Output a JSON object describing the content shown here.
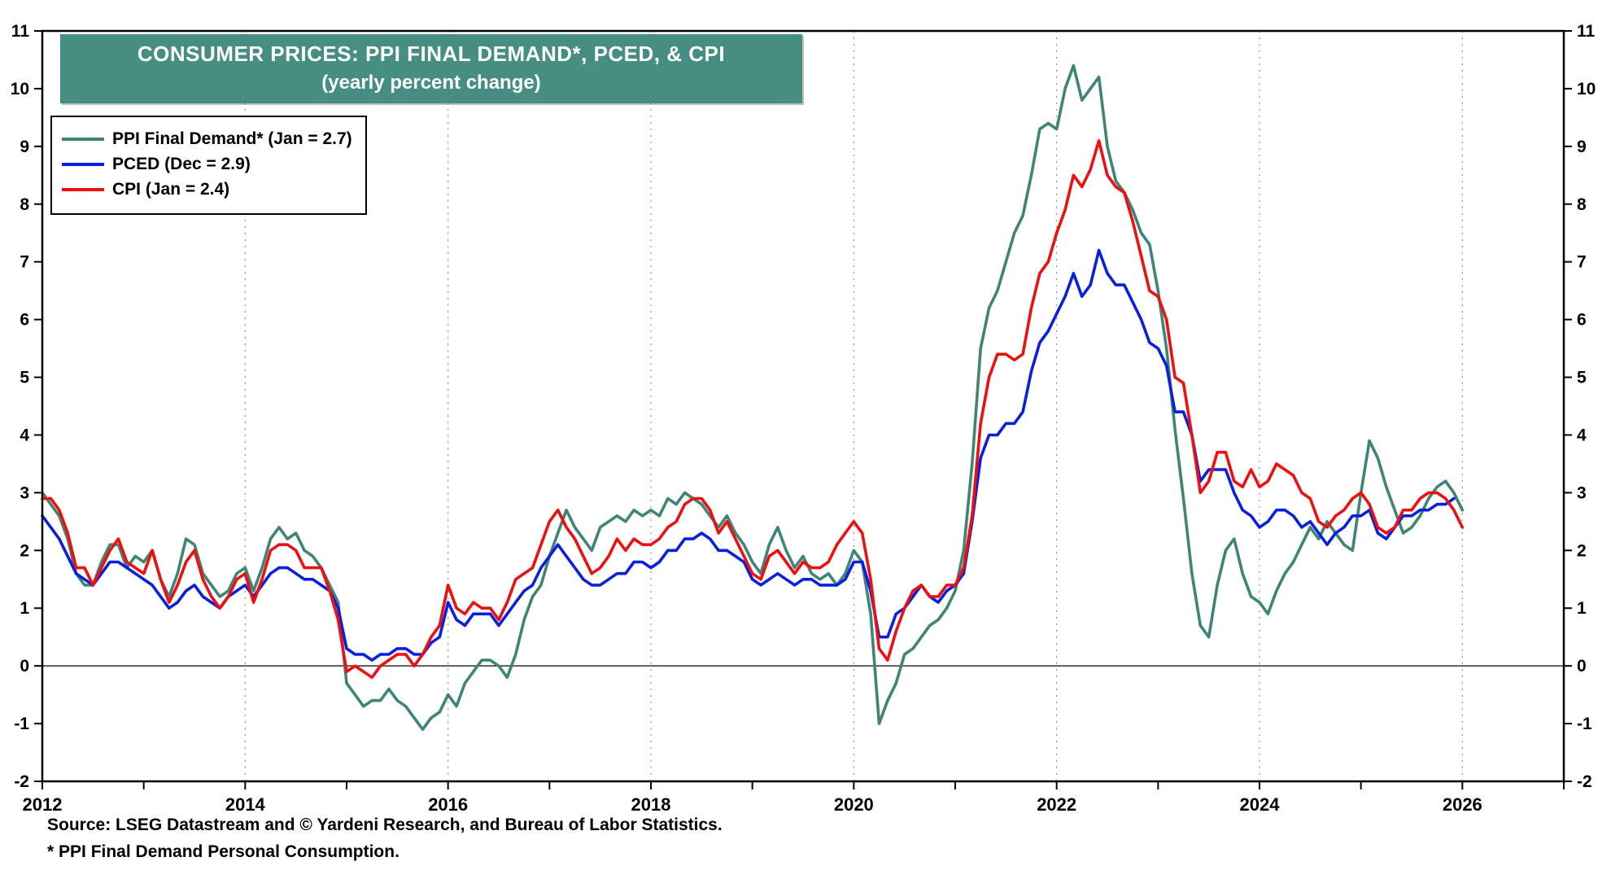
{
  "header": {
    "title_line1": "CONSUMER PRICES: PPI FINAL DEMAND*, PCED, & CPI",
    "title_line2": "(yearly percent change)",
    "title_bg_color": "#478E82"
  },
  "legend": {
    "items": [
      {
        "label": "PPI Final Demand* (Jan = 2.7)",
        "color": "#3F8577"
      },
      {
        "label": "PCED (Dec = 2.9)",
        "color": "#0B1FDE"
      },
      {
        "label": "CPI (Jan = 2.4)",
        "color": "#EC1010"
      }
    ]
  },
  "footer": {
    "source": "Source: LSEG Datastream and © Yardeni Research, and Bureau of Labor Statistics.",
    "footnote": "* PPI Final Demand Personal Consumption."
  },
  "chart_data": {
    "type": "line",
    "title": "Consumer Prices: PPI Final Demand, PCED, & CPI (yearly percent change)",
    "xlabel": "",
    "ylabel": "yearly percent change",
    "xlim": [
      2012,
      2027
    ],
    "ylim": [
      -2,
      11
    ],
    "x_ticks": [
      2012,
      2014,
      2016,
      2018,
      2020,
      2022,
      2024,
      2026
    ],
    "y_ticks": [
      -2,
      -1,
      0,
      1,
      2,
      3,
      4,
      5,
      6,
      7,
      8,
      9,
      10,
      11
    ],
    "grid": "vertical-dotted",
    "legend_position": "top-left",
    "x_start": 2012.0,
    "x_step_years": 0.0833333,
    "series": [
      {
        "name": "PPI Final Demand*",
        "color": "#3F8577",
        "latest_label": "Jan = 2.7",
        "values": [
          3.0,
          2.8,
          2.6,
          2.2,
          1.6,
          1.4,
          1.4,
          1.8,
          2.1,
          2.1,
          1.7,
          1.9,
          1.8,
          2.0,
          1.5,
          1.2,
          1.6,
          2.2,
          2.1,
          1.6,
          1.4,
          1.2,
          1.3,
          1.6,
          1.7,
          1.3,
          1.7,
          2.2,
          2.4,
          2.2,
          2.3,
          2.0,
          1.9,
          1.7,
          1.4,
          1.1,
          -0.3,
          -0.5,
          -0.7,
          -0.6,
          -0.6,
          -0.4,
          -0.6,
          -0.7,
          -0.9,
          -1.1,
          -0.9,
          -0.8,
          -0.5,
          -0.7,
          -0.3,
          -0.1,
          0.1,
          0.1,
          0.0,
          -0.2,
          0.2,
          0.8,
          1.2,
          1.4,
          1.9,
          2.3,
          2.7,
          2.4,
          2.2,
          2.0,
          2.4,
          2.5,
          2.6,
          2.5,
          2.7,
          2.6,
          2.7,
          2.6,
          2.9,
          2.8,
          3.0,
          2.9,
          2.8,
          2.6,
          2.4,
          2.6,
          2.3,
          2.1,
          1.8,
          1.6,
          2.1,
          2.4,
          2.0,
          1.7,
          1.9,
          1.6,
          1.5,
          1.6,
          1.4,
          1.6,
          2.0,
          1.8,
          0.9,
          -1.0,
          -0.6,
          -0.3,
          0.2,
          0.3,
          0.5,
          0.7,
          0.8,
          1.0,
          1.3,
          2.0,
          3.5,
          5.5,
          6.2,
          6.5,
          7.0,
          7.5,
          7.8,
          8.5,
          9.3,
          9.4,
          9.3,
          10.0,
          10.4,
          9.8,
          10.0,
          10.2,
          9.0,
          8.4,
          8.2,
          7.9,
          7.5,
          7.3,
          6.5,
          5.5,
          4.1,
          2.9,
          1.6,
          0.7,
          0.5,
          1.4,
          2.0,
          2.2,
          1.6,
          1.2,
          1.1,
          0.9,
          1.3,
          1.6,
          1.8,
          2.1,
          2.4,
          2.2,
          2.5,
          2.3,
          2.1,
          2.0,
          3.0,
          3.9,
          3.6,
          3.1,
          2.7,
          2.3,
          2.4,
          2.6,
          2.9,
          3.1,
          3.2,
          3.0,
          2.7
        ]
      },
      {
        "name": "PCED",
        "color": "#0B1FDE",
        "latest_label": "Dec = 2.9",
        "values": [
          2.6,
          2.4,
          2.2,
          1.9,
          1.6,
          1.5,
          1.4,
          1.6,
          1.8,
          1.8,
          1.7,
          1.6,
          1.5,
          1.4,
          1.2,
          1.0,
          1.1,
          1.3,
          1.4,
          1.2,
          1.1,
          1.0,
          1.2,
          1.3,
          1.4,
          1.2,
          1.4,
          1.6,
          1.7,
          1.7,
          1.6,
          1.5,
          1.5,
          1.4,
          1.3,
          1.0,
          0.3,
          0.2,
          0.2,
          0.1,
          0.2,
          0.2,
          0.3,
          0.3,
          0.2,
          0.2,
          0.4,
          0.5,
          1.1,
          0.8,
          0.7,
          0.9,
          0.9,
          0.9,
          0.7,
          0.9,
          1.1,
          1.3,
          1.4,
          1.7,
          1.9,
          2.1,
          1.9,
          1.7,
          1.5,
          1.4,
          1.4,
          1.5,
          1.6,
          1.6,
          1.8,
          1.8,
          1.7,
          1.8,
          2.0,
          2.0,
          2.2,
          2.2,
          2.3,
          2.2,
          2.0,
          2.0,
          1.9,
          1.8,
          1.5,
          1.4,
          1.5,
          1.6,
          1.5,
          1.4,
          1.5,
          1.5,
          1.4,
          1.4,
          1.4,
          1.5,
          1.8,
          1.8,
          1.3,
          0.5,
          0.5,
          0.9,
          1.0,
          1.2,
          1.4,
          1.2,
          1.1,
          1.3,
          1.4,
          1.6,
          2.5,
          3.6,
          4.0,
          4.0,
          4.2,
          4.2,
          4.4,
          5.1,
          5.6,
          5.8,
          6.1,
          6.4,
          6.8,
          6.4,
          6.6,
          7.2,
          6.8,
          6.6,
          6.6,
          6.3,
          6.0,
          5.6,
          5.5,
          5.2,
          4.4,
          4.4,
          4.0,
          3.2,
          3.4,
          3.4,
          3.4,
          3.0,
          2.7,
          2.6,
          2.4,
          2.5,
          2.7,
          2.7,
          2.6,
          2.4,
          2.5,
          2.3,
          2.1,
          2.3,
          2.4,
          2.6,
          2.6,
          2.7,
          2.3,
          2.2,
          2.4,
          2.6,
          2.6,
          2.7,
          2.7,
          2.8,
          2.8,
          2.9
        ]
      },
      {
        "name": "CPI",
        "color": "#EC1010",
        "latest_label": "Jan = 2.4",
        "values": [
          2.9,
          2.9,
          2.7,
          2.3,
          1.7,
          1.7,
          1.4,
          1.7,
          2.0,
          2.2,
          1.8,
          1.7,
          1.6,
          2.0,
          1.5,
          1.1,
          1.4,
          1.8,
          2.0,
          1.5,
          1.2,
          1.0,
          1.2,
          1.5,
          1.6,
          1.1,
          1.5,
          2.0,
          2.1,
          2.1,
          2.0,
          1.7,
          1.7,
          1.7,
          1.3,
          0.8,
          -0.1,
          0.0,
          -0.1,
          -0.2,
          0.0,
          0.1,
          0.2,
          0.2,
          0.0,
          0.2,
          0.5,
          0.7,
          1.4,
          1.0,
          0.9,
          1.1,
          1.0,
          1.0,
          0.8,
          1.1,
          1.5,
          1.6,
          1.7,
          2.1,
          2.5,
          2.7,
          2.4,
          2.2,
          1.9,
          1.6,
          1.7,
          1.9,
          2.2,
          2.0,
          2.2,
          2.1,
          2.1,
          2.2,
          2.4,
          2.5,
          2.8,
          2.9,
          2.9,
          2.7,
          2.3,
          2.5,
          2.2,
          1.9,
          1.6,
          1.5,
          1.9,
          2.0,
          1.8,
          1.6,
          1.8,
          1.7,
          1.7,
          1.8,
          2.1,
          2.3,
          2.5,
          2.3,
          1.5,
          0.3,
          0.1,
          0.6,
          1.0,
          1.3,
          1.4,
          1.2,
          1.2,
          1.4,
          1.4,
          1.7,
          2.6,
          4.2,
          5.0,
          5.4,
          5.4,
          5.3,
          5.4,
          6.2,
          6.8,
          7.0,
          7.5,
          7.9,
          8.5,
          8.3,
          8.6,
          9.1,
          8.5,
          8.3,
          8.2,
          7.7,
          7.1,
          6.5,
          6.4,
          6.0,
          5.0,
          4.9,
          4.0,
          3.0,
          3.2,
          3.7,
          3.7,
          3.2,
          3.1,
          3.4,
          3.1,
          3.2,
          3.5,
          3.4,
          3.3,
          3.0,
          2.9,
          2.5,
          2.4,
          2.6,
          2.7,
          2.9,
          3.0,
          2.8,
          2.4,
          2.3,
          2.4,
          2.7,
          2.7,
          2.9,
          3.0,
          3.0,
          2.9,
          2.7,
          2.4
        ]
      }
    ]
  }
}
